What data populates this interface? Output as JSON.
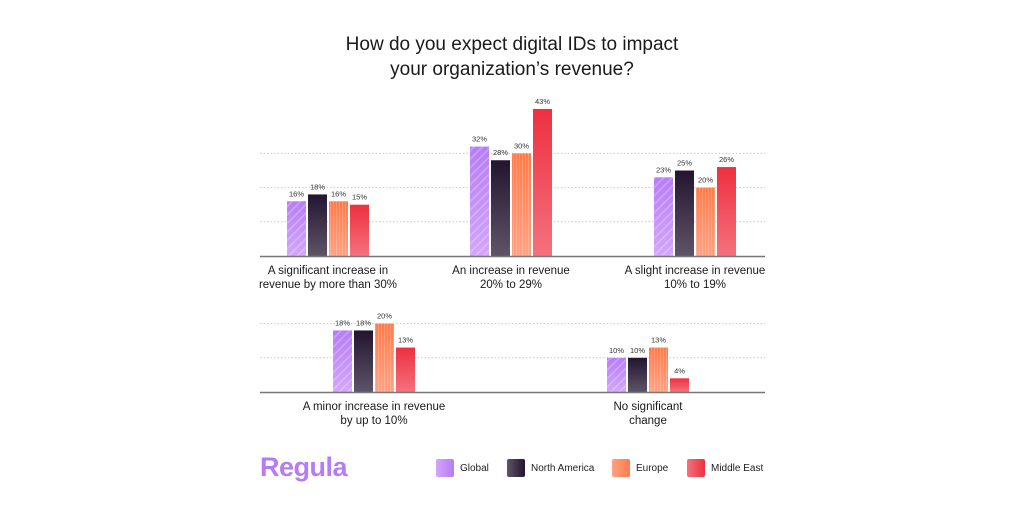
{
  "chart_data": {
    "type": "bar",
    "title": "How do you expect digital IDs to impact your organization’s revenue?",
    "title_lines": [
      "How do you expect digital IDs to impact",
      "your organization’s revenue?"
    ],
    "value_suffix": "%",
    "ylim": [
      0,
      45
    ],
    "grid": true,
    "legend_position": "bottom-right",
    "series": [
      {
        "name": "Global",
        "color": "#b77cf5",
        "color_light": "#d3a6fb"
      },
      {
        "name": "North America",
        "color": "#231530",
        "color_light": "#5e5467"
      },
      {
        "name": "Europe",
        "color": "#ff7b4a",
        "color_light": "#ffa283"
      },
      {
        "name": "Middle East",
        "color": "#ee3040",
        "color_light": "#f4717d"
      }
    ],
    "categories": [
      {
        "label": [
          "A significant increase in",
          "revenue by more than 30%"
        ],
        "values": [
          16,
          18,
          16,
          15
        ]
      },
      {
        "label": [
          "An increase in revenue",
          "20% to 29%"
        ],
        "values": [
          32,
          28,
          30,
          43
        ]
      },
      {
        "label": [
          "A slight increase in revenue",
          "10% to 19%"
        ],
        "values": [
          23,
          25,
          20,
          26
        ]
      },
      {
        "label": [
          "A minor increase in revenue",
          "by up to 10%"
        ],
        "values": [
          18,
          18,
          20,
          13
        ]
      },
      {
        "label": [
          "No significant",
          "change"
        ],
        "values": [
          10,
          10,
          13,
          4
        ]
      }
    ]
  },
  "brand": {
    "logo": "Regula"
  }
}
